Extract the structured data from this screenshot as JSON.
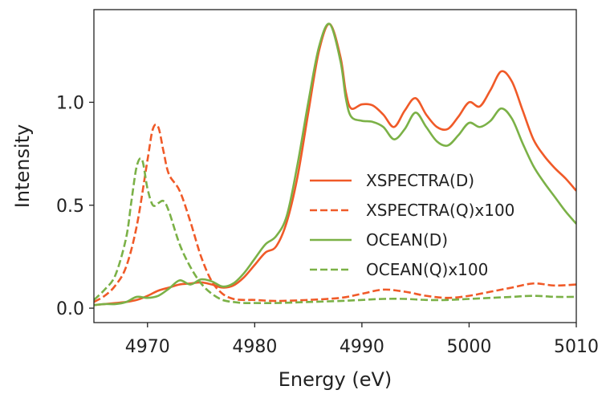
{
  "chart_data": {
    "type": "line",
    "xlabel": "Energy (eV)",
    "ylabel": "Intensity",
    "xlim": [
      4965,
      5010
    ],
    "ylim": [
      -0.07,
      1.45
    ],
    "xticks": [
      4970,
      4980,
      4990,
      5000,
      5010
    ],
    "yticks": [
      0.0,
      0.5,
      1.0
    ],
    "ytick_labels": [
      "0.0",
      "0.5",
      "1.0"
    ],
    "grid": false,
    "legend_position": "center-right",
    "series": [
      {
        "name": "XSPECTRA(D)",
        "color": "#f05a28",
        "dash": "solid",
        "x": [
          4965,
          4966,
          4967,
          4968,
          4969,
          4970,
          4971,
          4972,
          4973,
          4974,
          4975,
          4976,
          4977,
          4978,
          4979,
          4980,
          4981,
          4982,
          4983,
          4984,
          4985,
          4986,
          4987,
          4988,
          4988.5,
          4989,
          4990,
          4991,
          4992,
          4993,
          4994,
          4995,
          4996,
          4997,
          4998,
          4999,
          5000,
          5001,
          5002,
          5003,
          5004,
          5005,
          5006,
          5007,
          5008,
          5009,
          5010
        ],
        "y": [
          0.015,
          0.02,
          0.025,
          0.03,
          0.04,
          0.06,
          0.085,
          0.1,
          0.115,
          0.12,
          0.125,
          0.115,
          0.1,
          0.11,
          0.15,
          0.21,
          0.27,
          0.3,
          0.42,
          0.64,
          0.95,
          1.25,
          1.38,
          1.22,
          1.05,
          0.97,
          0.99,
          0.985,
          0.94,
          0.88,
          0.96,
          1.02,
          0.94,
          0.88,
          0.87,
          0.93,
          1.0,
          0.98,
          1.06,
          1.15,
          1.1,
          0.96,
          0.82,
          0.74,
          0.68,
          0.63,
          0.57
        ]
      },
      {
        "name": "XSPECTRA(Q)x100",
        "color": "#f05a28",
        "dash": "dashed",
        "x": [
          4965,
          4966,
          4967,
          4968,
          4969,
          4970,
          4970.5,
          4971,
          4971.5,
          4972,
          4973,
          4974,
          4975,
          4976,
          4977,
          4978,
          4979,
          4980,
          4982,
          4985,
          4988,
          4990,
          4992,
          4994,
          4996,
          4998,
          5000,
          5002,
          5004,
          5006,
          5008,
          5010
        ],
        "y": [
          0.03,
          0.06,
          0.11,
          0.2,
          0.4,
          0.72,
          0.87,
          0.88,
          0.76,
          0.65,
          0.57,
          0.42,
          0.25,
          0.13,
          0.07,
          0.045,
          0.04,
          0.04,
          0.035,
          0.04,
          0.05,
          0.07,
          0.09,
          0.08,
          0.06,
          0.05,
          0.06,
          0.08,
          0.1,
          0.12,
          0.11,
          0.115
        ]
      },
      {
        "name": "OCEAN(D)",
        "color": "#7bb147",
        "dash": "solid",
        "x": [
          4965,
          4966,
          4967,
          4968,
          4969,
          4970,
          4971,
          4972,
          4973,
          4974,
          4975,
          4976,
          4977,
          4978,
          4979,
          4980,
          4981,
          4982,
          4983,
          4984,
          4985,
          4986,
          4987,
          4988,
          4988.5,
          4989,
          4990,
          4991,
          4992,
          4993,
          4994,
          4995,
          4996,
          4997,
          4998,
          4999,
          5000,
          5001,
          5002,
          5003,
          5004,
          5005,
          5006,
          5007,
          5008,
          5009,
          5010
        ],
        "y": [
          0.015,
          0.02,
          0.02,
          0.03,
          0.055,
          0.05,
          0.06,
          0.095,
          0.135,
          0.115,
          0.14,
          0.13,
          0.105,
          0.12,
          0.17,
          0.24,
          0.31,
          0.35,
          0.45,
          0.7,
          1.0,
          1.27,
          1.38,
          1.2,
          1.02,
          0.93,
          0.91,
          0.905,
          0.88,
          0.82,
          0.87,
          0.95,
          0.88,
          0.81,
          0.79,
          0.84,
          0.9,
          0.88,
          0.91,
          0.97,
          0.92,
          0.8,
          0.69,
          0.61,
          0.54,
          0.47,
          0.41
        ]
      },
      {
        "name": "OCEAN(Q)x100",
        "color": "#7bb147",
        "dash": "dashed",
        "x": [
          4965,
          4966,
          4967,
          4968,
          4968.5,
          4969,
          4969.5,
          4970,
          4970.5,
          4971,
          4971.5,
          4972,
          4973,
          4974,
          4975,
          4976,
          4977,
          4978,
          4979,
          4980,
          4982,
          4985,
          4988,
          4990,
          4992,
          4994,
          4996,
          4998,
          5000,
          5002,
          5004,
          5006,
          5008,
          5010
        ],
        "y": [
          0.04,
          0.09,
          0.16,
          0.34,
          0.52,
          0.69,
          0.72,
          0.58,
          0.5,
          0.51,
          0.52,
          0.47,
          0.31,
          0.2,
          0.12,
          0.07,
          0.04,
          0.03,
          0.025,
          0.025,
          0.025,
          0.03,
          0.035,
          0.04,
          0.045,
          0.045,
          0.04,
          0.04,
          0.045,
          0.05,
          0.055,
          0.06,
          0.055,
          0.055
        ]
      }
    ]
  }
}
